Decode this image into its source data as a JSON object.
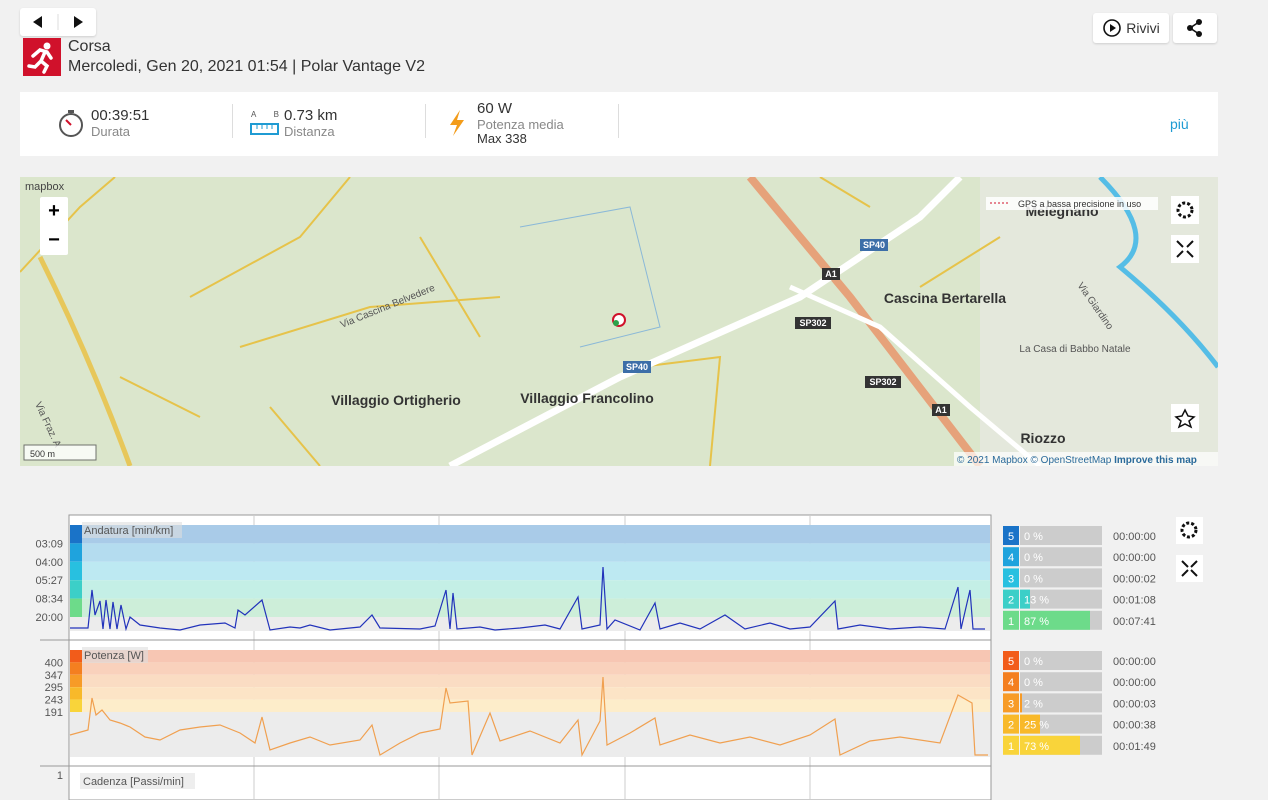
{
  "header": {
    "sport": "Corsa",
    "subtitle": "Mercoledi, Gen 20, 2021 01:54 | Polar Vantage V2"
  },
  "actions": {
    "replay": "Rivivi"
  },
  "summary": {
    "items": [
      {
        "value": "00:39:51",
        "label": "Durata"
      },
      {
        "value": "0.73 km",
        "label": "Distanza",
        "icon_text": [
          "A",
          "B"
        ]
      },
      {
        "value": "60 W",
        "label": "Potenza media",
        "extra": "Max 338"
      }
    ],
    "more": "più"
  },
  "map": {
    "logo": "mapbox",
    "zoom_in": "+",
    "zoom_out": "−",
    "gps_note": "GPS a bassa precisione in uso",
    "places": [
      "Melegnano",
      "Via Cascina Belvedere",
      "SP40",
      "A1",
      "SP302",
      "Cascina Bertarella",
      "Villaggio Ortigherio",
      "Villaggio Francolino",
      "La Casa di Babbo Natale",
      "Riozzo",
      "Via Giardino",
      "Via Fraz. A",
      "SP40",
      "SP302",
      "A1"
    ],
    "scale": "500 m",
    "attribution": [
      "© 2021 Mapbox",
      "© OpenStreetMap",
      "Improve this map"
    ]
  },
  "charts": {
    "pace": {
      "title": "Andatura [min/km]",
      "ticks": [
        "03:09",
        "04:00",
        "05:27",
        "08:34",
        "20:00"
      ],
      "zones": [
        {
          "zone": "5",
          "share": "0 %",
          "time": "00:00:00"
        },
        {
          "zone": "4",
          "share": "0 %",
          "time": "00:00:00"
        },
        {
          "zone": "3",
          "share": "0 %",
          "time": "00:00:02"
        },
        {
          "zone": "2",
          "share": "13 %",
          "time": "00:01:08"
        },
        {
          "zone": "1",
          "share": "87 %",
          "time": "00:07:41"
        }
      ]
    },
    "power": {
      "title": "Potenza [W]",
      "ticks": [
        "400",
        "347",
        "295",
        "243",
        "191"
      ],
      "zones": [
        {
          "zone": "5",
          "share": "0 %",
          "time": "00:00:00"
        },
        {
          "zone": "4",
          "share": "0 %",
          "time": "00:00:00"
        },
        {
          "zone": "3",
          "share": "2 %",
          "time": "00:00:03"
        },
        {
          "zone": "2",
          "share": "25 %",
          "time": "00:00:38"
        },
        {
          "zone": "1",
          "share": "73 %",
          "time": "00:01:49"
        }
      ]
    },
    "cadence": {
      "title": "Cadenza [Passi/min]",
      "ticks": [
        "1"
      ]
    }
  }
}
